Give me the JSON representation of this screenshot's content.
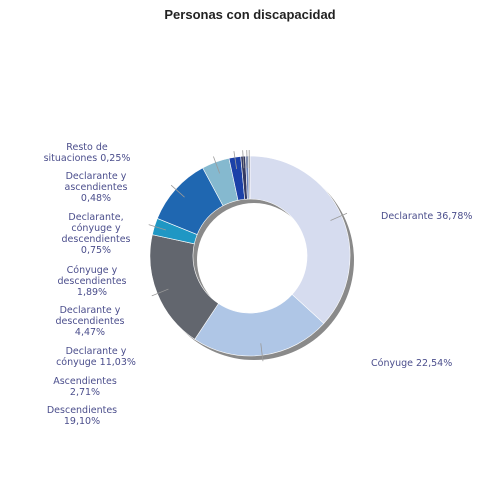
{
  "chart_data": {
    "type": "pie",
    "donut": true,
    "title": "Personas con discapacidad",
    "slices": [
      {
        "label": "Declarante 36,78%",
        "value": 36.78,
        "color": "#d6dcef"
      },
      {
        "label": "Cónyuge 22,54%",
        "value": 22.54,
        "color": "#afc6e6"
      },
      {
        "label": "Descendientes 19,10%",
        "value": 19.1,
        "color": "#62666e"
      },
      {
        "label": "Ascendientes 2,71%",
        "value": 2.71,
        "color": "#1f97c4"
      },
      {
        "label": "Declarante y cónyuge 11,03%",
        "value": 11.03,
        "color": "#1f67b1"
      },
      {
        "label": "Declarante y descendientes 4,47%",
        "value": 4.47,
        "color": "#85b9cf"
      },
      {
        "label": "Cónyuge y descendientes 1,89%",
        "value": 1.89,
        "color": "#1c41a8"
      },
      {
        "label": "Declarante, cónyuge y descendientes 0,75%",
        "value": 0.75,
        "color": "#343a63"
      },
      {
        "label": "Declarante y ascendientes 0,48%",
        "value": 0.48,
        "color": "#6f86bd"
      },
      {
        "label": "Resto de situaciones 0,25%",
        "value": 0.25,
        "color": "#8e9093"
      }
    ]
  }
}
